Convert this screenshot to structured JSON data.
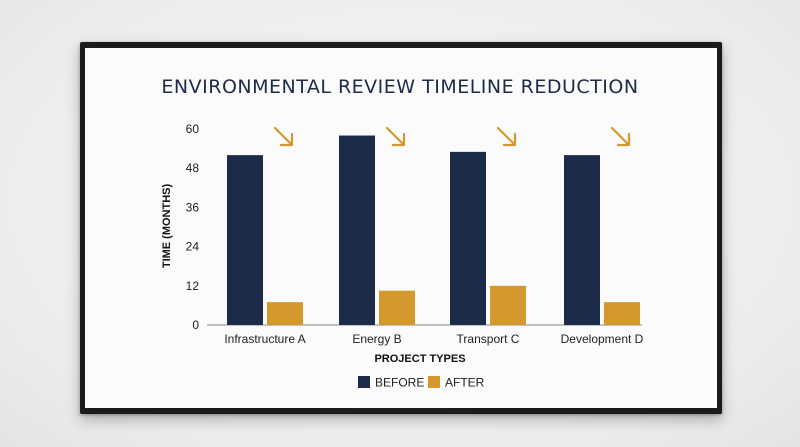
{
  "chart_data": {
    "type": "bar",
    "title": "ENVIRONMENTAL REVIEW TIMELINE REDUCTION",
    "xlabel": "PROJECT TYPES",
    "ylabel": "TIME (MONTHS)",
    "categories": [
      "Infrastructure A",
      "Energy B",
      "Transport C",
      "Development D"
    ],
    "series": [
      {
        "name": "BEFORE",
        "color": "#1c2b4a",
        "values": [
          52,
          58,
          53,
          52
        ]
      },
      {
        "name": "AFTER",
        "color": "#d4982d",
        "values": [
          7,
          10.5,
          12,
          7
        ]
      }
    ],
    "yticks": [
      0,
      12,
      24,
      36,
      48,
      60
    ],
    "ylim": [
      0,
      60
    ],
    "grid": false,
    "legend": "bottom-center",
    "annotation_icon": "down-right-arrow-icon",
    "annotation_color": "#d4982d"
  }
}
